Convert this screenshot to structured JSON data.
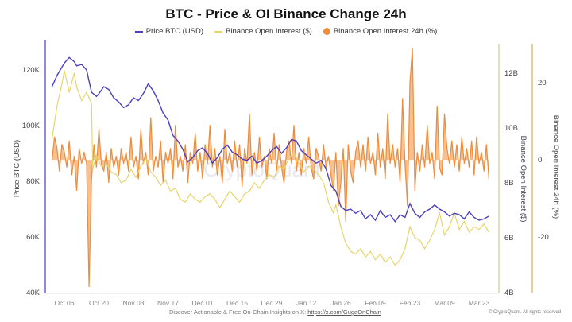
{
  "chart_data": {
    "type": "line",
    "title": "BTC - Price & OI Binance Change 24h",
    "legend": [
      {
        "name": "Price BTC (USD)",
        "color": "#4b3fbf",
        "marker": "line"
      },
      {
        "name": "Binance Open Interest ($)",
        "color": "#e8d56a",
        "marker": "line"
      },
      {
        "name": "Binance Open Interest 24h (%)",
        "color": "#ee8c3a",
        "marker": "dot"
      }
    ],
    "legend_position": "top-center",
    "xlabel": "",
    "x_ticks": [
      "Oct 06",
      "Oct 20",
      "Nov 03",
      "Nov 17",
      "Dec 01",
      "Dec 15",
      "Dec 29",
      "Jan 12",
      "Jan 26",
      "Feb 09",
      "Feb 23",
      "Mar 09",
      "Mar 23"
    ],
    "x_range_days": [
      -5,
      172
    ],
    "axes": {
      "left": {
        "label": "Price BTC (USD)",
        "ticks": [
          "40K",
          "60K",
          "80K",
          "100K",
          "120K"
        ],
        "range": [
          40000,
          127000
        ]
      },
      "right1": {
        "label": "Binance Open Interest ($)",
        "ticks": [
          "4B",
          "6B",
          "8B",
          "10B",
          "12B"
        ],
        "range": [
          4,
          12.4
        ]
      },
      "right2": {
        "label": "Binance Open Interest 24h (%)",
        "ticks": [
          "-20",
          "0",
          "20"
        ],
        "range": [
          -35,
          30
        ]
      }
    },
    "series": [
      {
        "name": "Price BTC (USD)",
        "x_days": [
          -5,
          -3,
          -1,
          0,
          2,
          4,
          5,
          7,
          9,
          11,
          13,
          14,
          16,
          18,
          20,
          22,
          24,
          26,
          28,
          30,
          32,
          34,
          36,
          38,
          40,
          42,
          44,
          46,
          48,
          50,
          52,
          54,
          56,
          58,
          60,
          62,
          64,
          66,
          68,
          70,
          72,
          74,
          76,
          78,
          80,
          82,
          84,
          86,
          88,
          90,
          92,
          94,
          96,
          98,
          100,
          102,
          104,
          106,
          108,
          110,
          112,
          114,
          116,
          118,
          120,
          122,
          124,
          126,
          128,
          130,
          132,
          134,
          136,
          138,
          140,
          142,
          144,
          146,
          148,
          150,
          152,
          154,
          156,
          158,
          160,
          162,
          164,
          166,
          168,
          170,
          172
        ],
        "values": [
          114000,
          118000,
          121000,
          122500,
          124500,
          123000,
          121500,
          122000,
          120000,
          112000,
          110500,
          111500,
          114000,
          113000,
          110000,
          108500,
          106500,
          107500,
          110000,
          109000,
          111500,
          115000,
          112500,
          109000,
          104500,
          102000,
          96500,
          94500,
          91500,
          87000,
          88500,
          91000,
          92000,
          90000,
          86500,
          88500,
          91500,
          93000,
          90500,
          89500,
          88000,
          87500,
          89000,
          86500,
          87500,
          89000,
          91000,
          92500,
          90000,
          92000,
          95000,
          94500,
          91000,
          89500,
          88000,
          86500,
          87500,
          84500,
          78500,
          76500,
          71000,
          69500,
          70000,
          68500,
          69500,
          66500,
          68000,
          66000,
          69500,
          67000,
          68000,
          65500,
          68000,
          67000,
          72000,
          68500,
          67000,
          69000,
          70000,
          71500,
          70000,
          69000,
          67500,
          68500,
          68000,
          66500,
          69000,
          67000,
          66000,
          66500,
          67500
        ]
      },
      {
        "name": "Binance Open Interest ($)",
        "unit": "billion USD",
        "x_days": [
          -5,
          -3,
          -1,
          0,
          2,
          4,
          5,
          7,
          9,
          11,
          11.5,
          13,
          15,
          17,
          19,
          21,
          23,
          25,
          27,
          29,
          31,
          33,
          35,
          37,
          39,
          41,
          43,
          45,
          47,
          49,
          51,
          53,
          55,
          57,
          59,
          61,
          63,
          65,
          67,
          69,
          71,
          73,
          75,
          77,
          79,
          81,
          83,
          85,
          87,
          89,
          91,
          93,
          95,
          97,
          99,
          101,
          103,
          105,
          107,
          109,
          110,
          112,
          114,
          116,
          118,
          120,
          122,
          124,
          126,
          128,
          130,
          132,
          134,
          136,
          138,
          140,
          142,
          144,
          146,
          148,
          150,
          152,
          154,
          156,
          158,
          160,
          162,
          164,
          166,
          168,
          170,
          172
        ],
        "values": [
          9.6,
          10.8,
          11.6,
          12.1,
          11.3,
          12.0,
          11.5,
          11.0,
          11.3,
          10.9,
          8.5,
          9.0,
          8.6,
          8.7,
          8.4,
          8.3,
          8.0,
          8.1,
          8.5,
          8.2,
          8.6,
          8.9,
          8.4,
          8.2,
          7.9,
          8.1,
          7.7,
          7.8,
          7.4,
          7.3,
          7.6,
          7.4,
          7.3,
          7.5,
          7.6,
          7.4,
          7.1,
          7.4,
          7.7,
          7.5,
          7.3,
          7.6,
          7.7,
          8.0,
          7.8,
          8.1,
          8.3,
          8.2,
          8.6,
          8.5,
          8.9,
          9.1,
          8.7,
          8.4,
          8.6,
          8.5,
          8.3,
          8.0,
          7.3,
          6.9,
          7.2,
          6.4,
          5.8,
          5.5,
          5.4,
          5.6,
          5.3,
          5.5,
          5.2,
          5.4,
          5.1,
          5.3,
          5.0,
          5.2,
          5.6,
          6.4,
          6.0,
          5.9,
          5.6,
          5.9,
          6.3,
          6.9,
          6.1,
          6.4,
          6.9,
          6.3,
          6.6,
          6.2,
          6.4,
          6.3,
          6.5,
          6.2
        ]
      },
      {
        "name": "Binance Open Interest 24h (%)",
        "type": "area",
        "x_days": [
          -5,
          -4,
          -3,
          -2,
          -1,
          0,
          1,
          2,
          3,
          4,
          5,
          6,
          7,
          8,
          9,
          10,
          11,
          12,
          13,
          14,
          15,
          16,
          17,
          18,
          19,
          20,
          21,
          22,
          23,
          24,
          25,
          26,
          27,
          28,
          29,
          30,
          31,
          32,
          33,
          34,
          35,
          36,
          37,
          38,
          39,
          40,
          41,
          42,
          43,
          44,
          45,
          46,
          47,
          48,
          49,
          50,
          51,
          52,
          53,
          54,
          55,
          56,
          57,
          58,
          59,
          60,
          61,
          62,
          63,
          64,
          65,
          66,
          67,
          68,
          69,
          70,
          71,
          72,
          73,
          74,
          75,
          76,
          77,
          78,
          79,
          80,
          81,
          82,
          83,
          84,
          85,
          86,
          87,
          88,
          89,
          90,
          91,
          92,
          93,
          94,
          95,
          96,
          97,
          98,
          99,
          100,
          101,
          102,
          103,
          104,
          105,
          106,
          107,
          108,
          109,
          110,
          111,
          112,
          113,
          114,
          115,
          116,
          117,
          118,
          119,
          120,
          121,
          122,
          123,
          124,
          125,
          126,
          127,
          128,
          129,
          130,
          131,
          132,
          133,
          134,
          135,
          136,
          137,
          138,
          139,
          140,
          141,
          142,
          143,
          144,
          145,
          146,
          147,
          148,
          149,
          150,
          151,
          152,
          153,
          154,
          155,
          156,
          157,
          158,
          159,
          160,
          161,
          162,
          163,
          164,
          165,
          166,
          167,
          168,
          169,
          170,
          171,
          172
        ],
        "values": [
          0,
          6,
          3,
          -3,
          4,
          2,
          -2,
          5,
          -4,
          1,
          -8,
          3,
          -1,
          2,
          -1,
          -33,
          -5,
          4,
          -2,
          8,
          -1,
          -3,
          2,
          -6,
          3,
          -2,
          1,
          -4,
          3,
          -1,
          2,
          -3,
          6,
          -2,
          1,
          -5,
          8,
          -1,
          2,
          -4,
          11,
          -3,
          1,
          -2,
          5,
          -6,
          2,
          -1,
          3,
          -5,
          9,
          -2,
          1,
          -3,
          4,
          -6,
          2,
          -1,
          7,
          -3,
          2,
          -5,
          4,
          -1,
          9,
          -2,
          3,
          -4,
          1,
          -6,
          8,
          -1,
          2,
          -3,
          5,
          -2,
          4,
          -7,
          3,
          -1,
          12,
          -4,
          2,
          -3,
          6,
          -2,
          1,
          -5,
          3,
          -1,
          7,
          -3,
          4,
          -2,
          -6,
          2,
          5,
          -1,
          9,
          -3,
          2,
          -4,
          3,
          -1,
          6,
          -2,
          -5,
          3,
          1,
          -3,
          4,
          -2,
          1,
          -4,
          -8,
          2,
          -12,
          -6,
          3,
          -16,
          4,
          -3,
          -6,
          2,
          5,
          -2,
          4,
          -3,
          6,
          -1,
          2,
          -4,
          7,
          -2,
          3,
          -5,
          12,
          -1,
          4,
          -2,
          3,
          -6,
          16,
          -1,
          -12,
          20,
          29,
          -8,
          2,
          -3,
          4,
          -2,
          9,
          -1,
          2,
          -5,
          14,
          -2,
          -4,
          12,
          3,
          -1,
          5,
          -2,
          4,
          -3,
          6,
          -1,
          3,
          -2,
          5,
          -4,
          6,
          -1,
          2,
          -3,
          4,
          -5,
          2,
          -4
        ]
      }
    ],
    "watermark": "CryptoQuant",
    "grid": true
  },
  "footer": {
    "text": "Discover Actionable & Free On-Chain Insights on X: ",
    "link": "https://x.com/GugaOnChain",
    "copyright": "© CryptoQuant. All rights reserved"
  }
}
